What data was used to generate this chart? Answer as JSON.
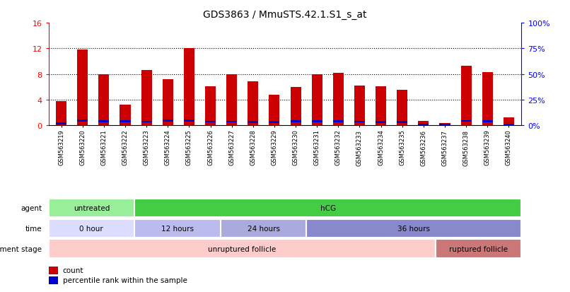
{
  "title": "GDS3863 / MmuSTS.42.1.S1_s_at",
  "samples": [
    "GSM563219",
    "GSM563220",
    "GSM563221",
    "GSM563222",
    "GSM563223",
    "GSM563224",
    "GSM563225",
    "GSM563226",
    "GSM563227",
    "GSM563228",
    "GSM563229",
    "GSM563230",
    "GSM563231",
    "GSM563232",
    "GSM563233",
    "GSM563234",
    "GSM563235",
    "GSM563236",
    "GSM563237",
    "GSM563238",
    "GSM563239",
    "GSM563240"
  ],
  "counts": [
    3.8,
    11.8,
    8.0,
    3.2,
    8.6,
    7.2,
    12.0,
    6.1,
    7.9,
    6.9,
    4.7,
    6.0,
    8.0,
    8.2,
    6.2,
    6.1,
    5.5,
    0.7,
    0.3,
    9.3,
    8.3,
    1.2
  ],
  "percentile_ranks": [
    1.5,
    4.3,
    3.7,
    4.0,
    3.5,
    4.6,
    4.6,
    3.4,
    3.5,
    3.3,
    3.1,
    3.6,
    3.6,
    3.7,
    3.5,
    3.3,
    2.9,
    0.5,
    0.3,
    4.1,
    4.0,
    0.5
  ],
  "ylim_left": [
    0,
    16
  ],
  "ylim_right": [
    0,
    100
  ],
  "yticks_left": [
    0,
    4,
    8,
    12,
    16
  ],
  "yticks_right": [
    0,
    25,
    50,
    75,
    100
  ],
  "ytick_labels_left": [
    "0",
    "4",
    "8",
    "12",
    "16"
  ],
  "ytick_labels_right": [
    "0%",
    "25%",
    "50%",
    "75%",
    "100%"
  ],
  "bar_color": "#cc0000",
  "percentile_color": "#0000cc",
  "background_color": "#ffffff",
  "agent_row": {
    "label": "agent",
    "groups": [
      {
        "text": "untreated",
        "start": 0,
        "end": 4,
        "color": "#99ee99"
      },
      {
        "text": "hCG",
        "start": 4,
        "end": 22,
        "color": "#44cc44"
      }
    ]
  },
  "time_row": {
    "label": "time",
    "groups": [
      {
        "text": "0 hour",
        "start": 0,
        "end": 4,
        "color": "#ddddff"
      },
      {
        "text": "12 hours",
        "start": 4,
        "end": 8,
        "color": "#bbbbee"
      },
      {
        "text": "24 hours",
        "start": 8,
        "end": 12,
        "color": "#aaaadd"
      },
      {
        "text": "36 hours",
        "start": 12,
        "end": 22,
        "color": "#8888cc"
      }
    ]
  },
  "dev_row": {
    "label": "development stage",
    "groups": [
      {
        "text": "unruptured follicle",
        "start": 0,
        "end": 18,
        "color": "#ffcccc"
      },
      {
        "text": "ruptured follicle",
        "start": 18,
        "end": 22,
        "color": "#cc7777"
      }
    ]
  },
  "legend": [
    {
      "label": "count",
      "color": "#cc0000"
    },
    {
      "label": "percentile rank within the sample",
      "color": "#0000cc"
    }
  ]
}
